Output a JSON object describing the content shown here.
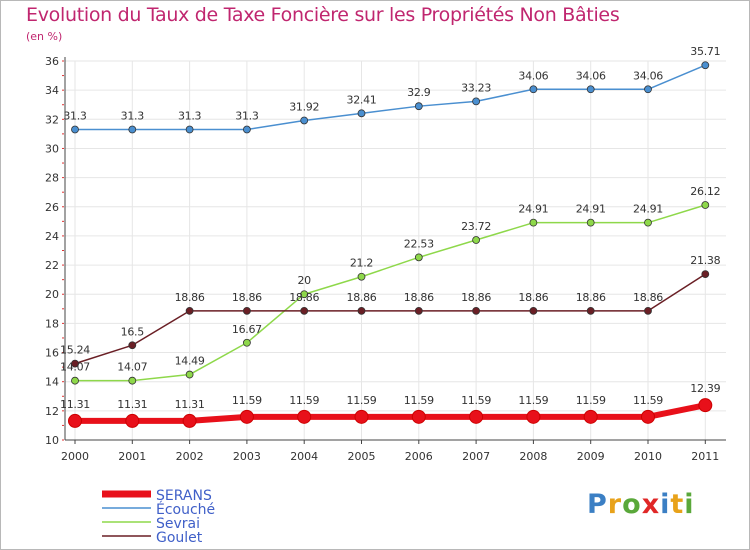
{
  "chart_data": {
    "type": "line",
    "title": "Evolution du Taux de Taxe Foncière sur les Propriétés Non Bâties",
    "subtitle": "(en %)",
    "x": [
      "2000",
      "2001",
      "2002",
      "2003",
      "2004",
      "2005",
      "2006",
      "2007",
      "2008",
      "2009",
      "2010",
      "2011"
    ],
    "ylim": [
      10,
      36
    ],
    "yticks": [
      10,
      12,
      14,
      16,
      18,
      20,
      22,
      24,
      26,
      28,
      30,
      32,
      34,
      36
    ],
    "grid": true,
    "legend_position": "bottom-left",
    "series": [
      {
        "name": "SERANS",
        "color": "#e8101a",
        "values": [
          11.31,
          11.31,
          11.31,
          11.59,
          11.59,
          11.59,
          11.59,
          11.59,
          11.59,
          11.59,
          11.59,
          12.39
        ],
        "labels": [
          "11.31",
          "11.31",
          "11.31",
          "11.59",
          "11.59",
          "11.59",
          "11.59",
          "11.59",
          "11.59",
          "11.59",
          "11.59",
          "12.39"
        ]
      },
      {
        "name": "Écouché",
        "color": "#4a8fd0",
        "values": [
          31.3,
          31.3,
          31.3,
          31.3,
          31.92,
          32.41,
          32.9,
          33.23,
          34.06,
          34.06,
          34.06,
          35.71
        ],
        "labels": [
          "31.3",
          "31.3",
          "31.3",
          "31.3",
          "31.92",
          "32.41",
          "32.9",
          "33.23",
          "34.06",
          "34.06",
          "34.06",
          "35.71"
        ]
      },
      {
        "name": "Sevrai",
        "color": "#8ed84a",
        "values": [
          14.07,
          14.07,
          14.49,
          16.67,
          20,
          21.2,
          22.53,
          23.72,
          24.91,
          24.91,
          24.91,
          26.12
        ],
        "labels": [
          "14.07",
          "14.07",
          "14.49",
          "16.67",
          "20",
          "21.2",
          "22.53",
          "23.72",
          "24.91",
          "24.91",
          "24.91",
          "26.12"
        ]
      },
      {
        "name": "Goulet",
        "color": "#6a1f25",
        "values": [
          15.24,
          16.5,
          18.86,
          18.86,
          18.86,
          18.86,
          18.86,
          18.86,
          18.86,
          18.86,
          18.86,
          21.38
        ],
        "labels": [
          "15.24",
          "16.5",
          "18.86",
          "18.86",
          "18.86",
          "18.86",
          "18.86",
          "18.86",
          "18.86",
          "18.86",
          "18.86",
          "21.38"
        ]
      }
    ]
  },
  "logo": {
    "text": "Proxiti",
    "letters": [
      {
        "ch": "P",
        "color": "#3b7fc4"
      },
      {
        "ch": "r",
        "color": "#e8a21a"
      },
      {
        "ch": "o",
        "color": "#5aa83a"
      },
      {
        "ch": "x",
        "color": "#e02727"
      },
      {
        "ch": "i",
        "color": "#3b7fc4"
      },
      {
        "ch": "t",
        "color": "#e8a21a"
      },
      {
        "ch": "i",
        "color": "#5aa83a"
      }
    ]
  }
}
